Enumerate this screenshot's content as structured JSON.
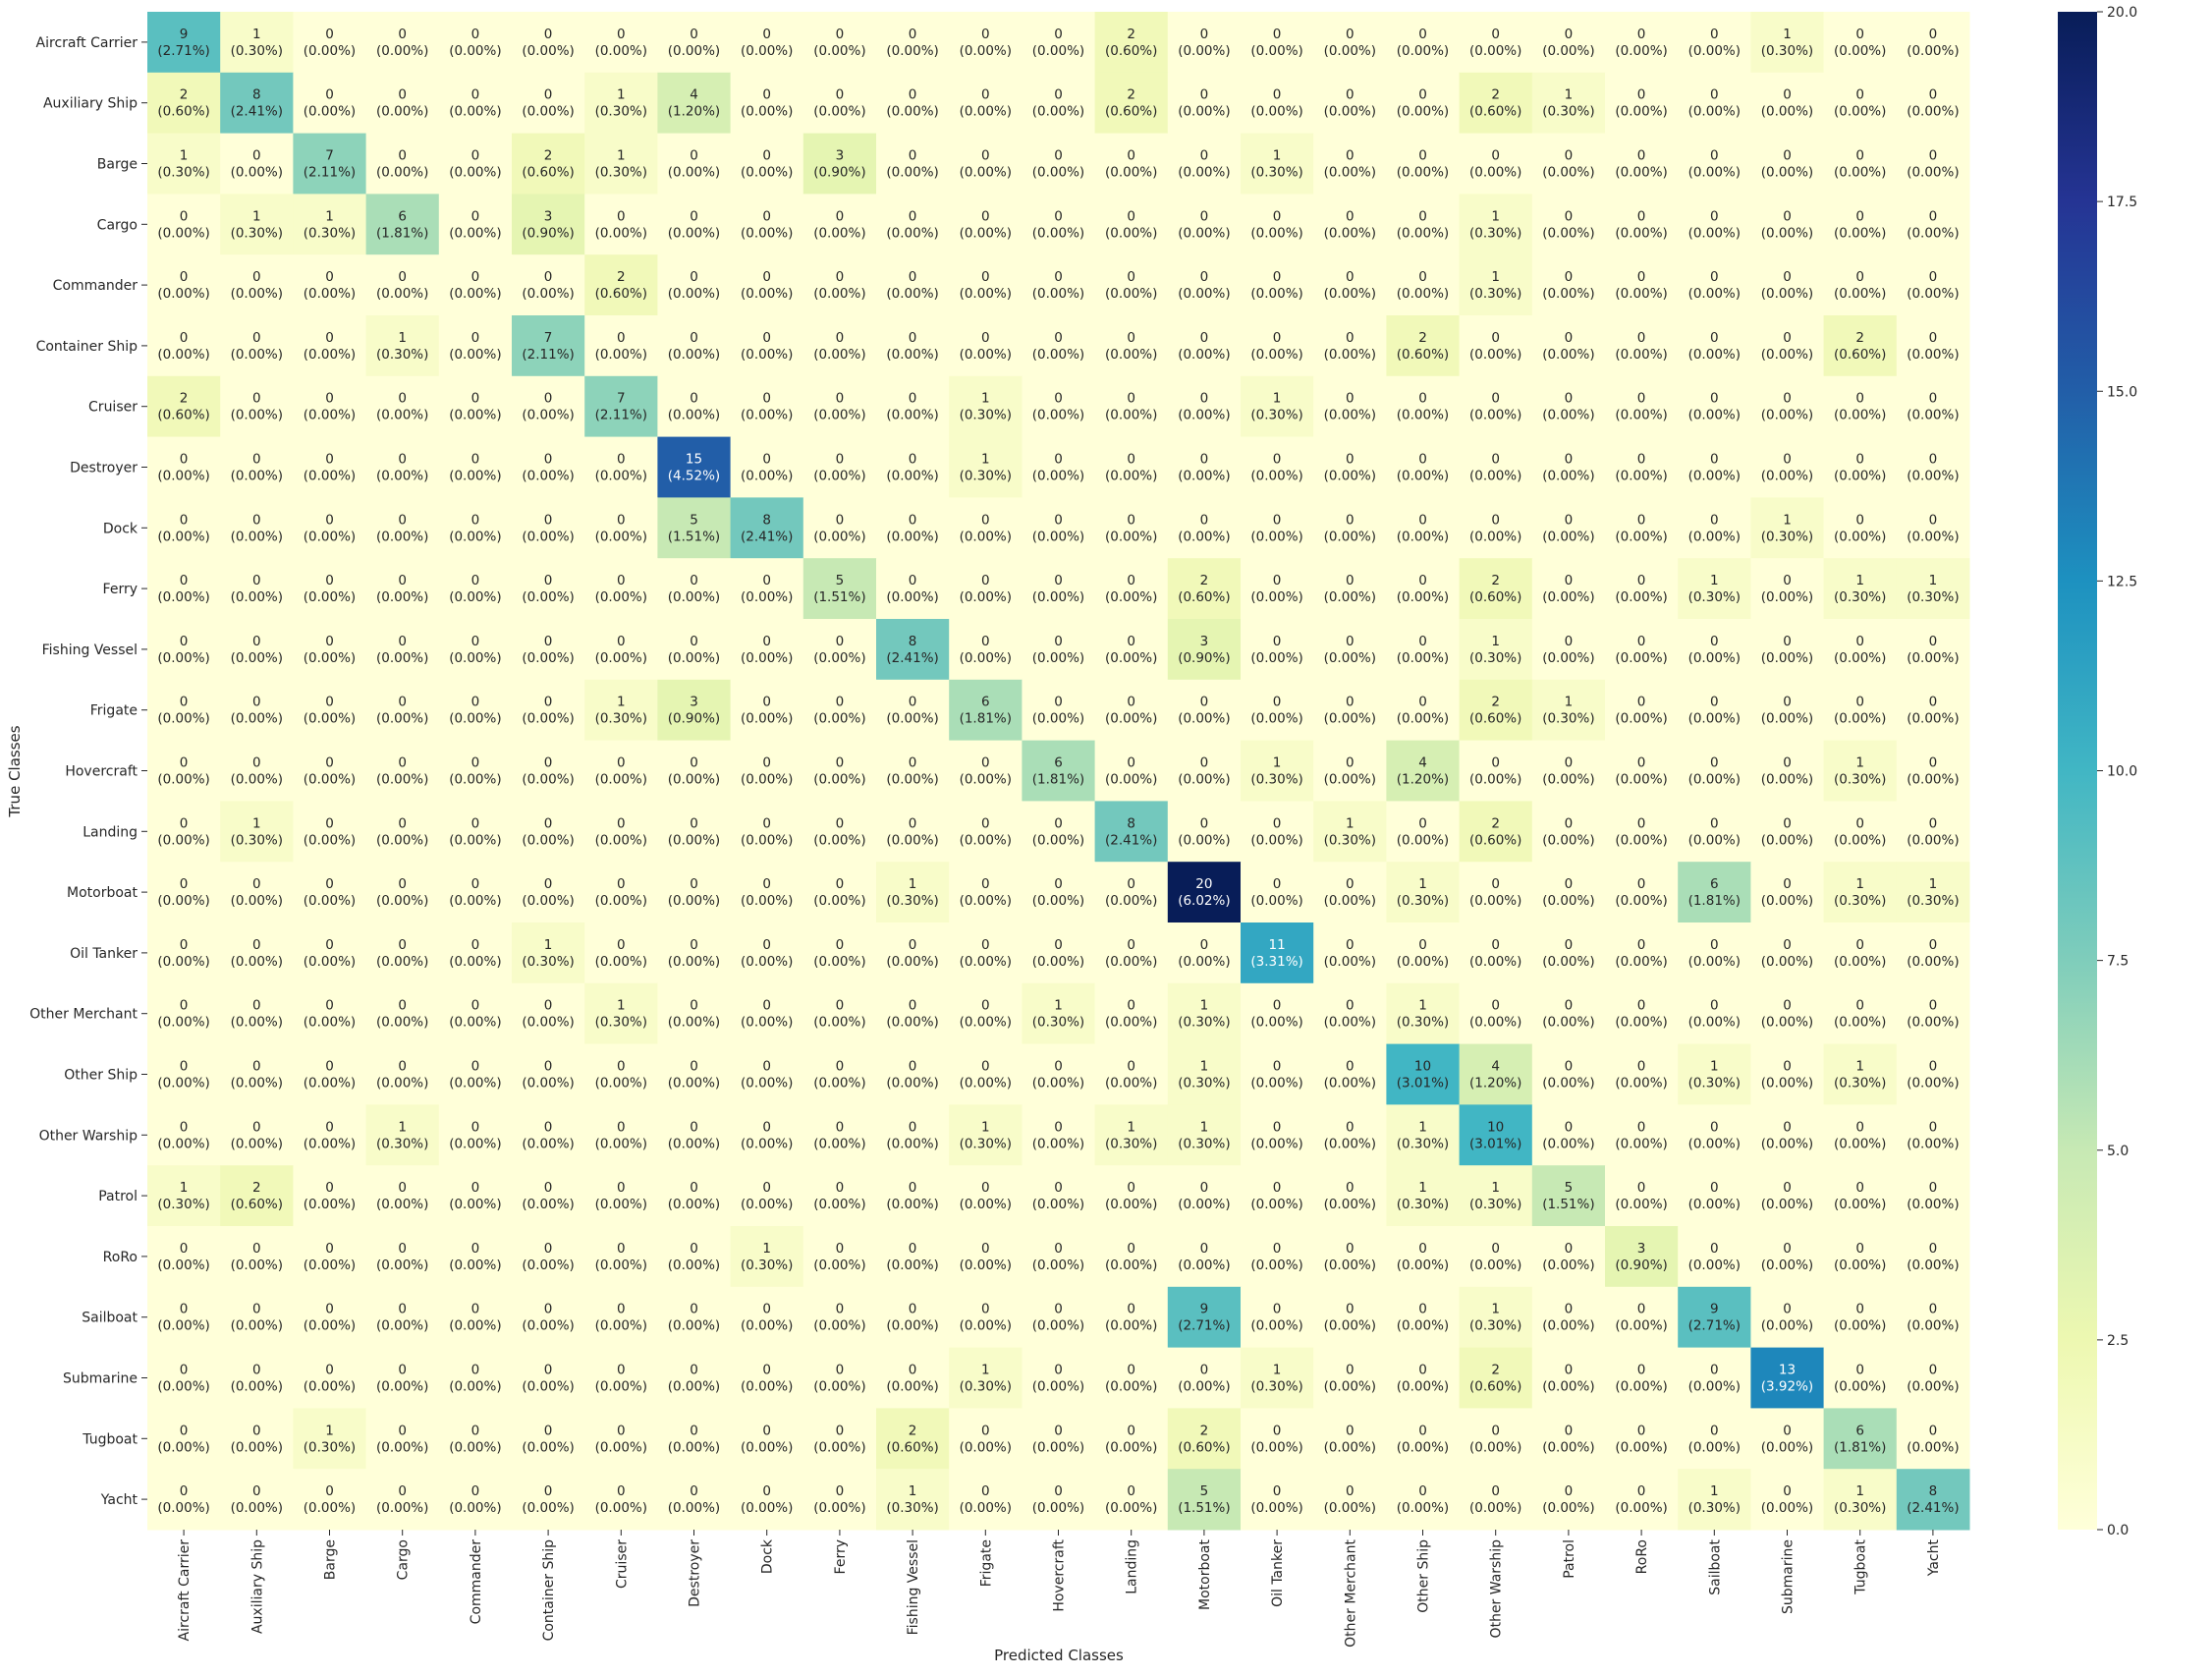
{
  "chart_data": {
    "type": "heatmap",
    "title": "",
    "xlabel": "Predicted Classes",
    "ylabel": "True Classes",
    "labels": [
      "Aircraft Carrier",
      "Auxiliary Ship",
      "Barge",
      "Cargo",
      "Commander",
      "Container Ship",
      "Cruiser",
      "Destroyer",
      "Dock",
      "Ferry",
      "Fishing Vessel",
      "Frigate",
      "Hovercraft",
      "Landing",
      "Motorboat",
      "Oil Tanker",
      "Other Merchant",
      "Other Ship",
      "Other Warship",
      "Patrol",
      "RoRo",
      "Sailboat",
      "Submarine",
      "Tugboat",
      "Yacht"
    ],
    "matrix": [
      [
        9,
        1,
        0,
        0,
        0,
        0,
        0,
        0,
        0,
        0,
        0,
        0,
        0,
        2,
        0,
        0,
        0,
        0,
        0,
        0,
        0,
        0,
        1,
        0,
        0
      ],
      [
        2,
        8,
        0,
        0,
        0,
        0,
        1,
        4,
        0,
        0,
        0,
        0,
        0,
        2,
        0,
        0,
        0,
        0,
        2,
        1,
        0,
        0,
        0,
        0,
        0
      ],
      [
        1,
        0,
        7,
        0,
        0,
        2,
        1,
        0,
        0,
        3,
        0,
        0,
        0,
        0,
        0,
        1,
        0,
        0,
        0,
        0,
        0,
        0,
        0,
        0,
        0
      ],
      [
        0,
        1,
        1,
        6,
        0,
        3,
        0,
        0,
        0,
        0,
        0,
        0,
        0,
        0,
        0,
        0,
        0,
        0,
        1,
        0,
        0,
        0,
        0,
        0,
        0
      ],
      [
        0,
        0,
        0,
        0,
        0,
        0,
        2,
        0,
        0,
        0,
        0,
        0,
        0,
        0,
        0,
        0,
        0,
        0,
        1,
        0,
        0,
        0,
        0,
        0,
        0
      ],
      [
        0,
        0,
        0,
        1,
        0,
        7,
        0,
        0,
        0,
        0,
        0,
        0,
        0,
        0,
        0,
        0,
        0,
        2,
        0,
        0,
        0,
        0,
        0,
        2,
        0
      ],
      [
        2,
        0,
        0,
        0,
        0,
        0,
        7,
        0,
        0,
        0,
        0,
        1,
        0,
        0,
        0,
        1,
        0,
        0,
        0,
        0,
        0,
        0,
        0,
        0,
        0
      ],
      [
        0,
        0,
        0,
        0,
        0,
        0,
        0,
        15,
        0,
        0,
        0,
        1,
        0,
        0,
        0,
        0,
        0,
        0,
        0,
        0,
        0,
        0,
        0,
        0,
        0
      ],
      [
        0,
        0,
        0,
        0,
        0,
        0,
        0,
        5,
        8,
        0,
        0,
        0,
        0,
        0,
        0,
        0,
        0,
        0,
        0,
        0,
        0,
        0,
        1,
        0,
        0
      ],
      [
        0,
        0,
        0,
        0,
        0,
        0,
        0,
        0,
        0,
        5,
        0,
        0,
        0,
        0,
        2,
        0,
        0,
        0,
        2,
        0,
        0,
        1,
        0,
        1,
        1
      ],
      [
        0,
        0,
        0,
        0,
        0,
        0,
        0,
        0,
        0,
        0,
        8,
        0,
        0,
        0,
        3,
        0,
        0,
        0,
        1,
        0,
        0,
        0,
        0,
        0,
        0
      ],
      [
        0,
        0,
        0,
        0,
        0,
        0,
        1,
        3,
        0,
        0,
        0,
        6,
        0,
        0,
        0,
        0,
        0,
        0,
        2,
        1,
        0,
        0,
        0,
        0,
        0
      ],
      [
        0,
        0,
        0,
        0,
        0,
        0,
        0,
        0,
        0,
        0,
        0,
        0,
        6,
        0,
        0,
        1,
        0,
        4,
        0,
        0,
        0,
        0,
        0,
        1,
        0
      ],
      [
        0,
        1,
        0,
        0,
        0,
        0,
        0,
        0,
        0,
        0,
        0,
        0,
        0,
        8,
        0,
        0,
        1,
        0,
        2,
        0,
        0,
        0,
        0,
        0,
        0
      ],
      [
        0,
        0,
        0,
        0,
        0,
        0,
        0,
        0,
        0,
        0,
        1,
        0,
        0,
        0,
        20,
        0,
        0,
        1,
        0,
        0,
        0,
        6,
        0,
        1,
        1
      ],
      [
        0,
        0,
        0,
        0,
        0,
        1,
        0,
        0,
        0,
        0,
        0,
        0,
        0,
        0,
        0,
        11,
        0,
        0,
        0,
        0,
        0,
        0,
        0,
        0,
        0
      ],
      [
        0,
        0,
        0,
        0,
        0,
        0,
        1,
        0,
        0,
        0,
        0,
        0,
        1,
        0,
        1,
        0,
        0,
        1,
        0,
        0,
        0,
        0,
        0,
        0,
        0
      ],
      [
        0,
        0,
        0,
        0,
        0,
        0,
        0,
        0,
        0,
        0,
        0,
        0,
        0,
        0,
        1,
        0,
        0,
        10,
        4,
        0,
        0,
        1,
        0,
        1,
        0
      ],
      [
        0,
        0,
        0,
        1,
        0,
        0,
        0,
        0,
        0,
        0,
        0,
        1,
        0,
        1,
        1,
        0,
        0,
        1,
        10,
        0,
        0,
        0,
        0,
        0,
        0
      ],
      [
        1,
        2,
        0,
        0,
        0,
        0,
        0,
        0,
        0,
        0,
        0,
        0,
        0,
        0,
        0,
        0,
        0,
        1,
        1,
        5,
        0,
        0,
        0,
        0,
        0
      ],
      [
        0,
        0,
        0,
        0,
        0,
        0,
        0,
        0,
        1,
        0,
        0,
        0,
        0,
        0,
        0,
        0,
        0,
        0,
        0,
        0,
        3,
        0,
        0,
        0,
        0
      ],
      [
        0,
        0,
        0,
        0,
        0,
        0,
        0,
        0,
        0,
        0,
        0,
        0,
        0,
        0,
        9,
        0,
        0,
        0,
        1,
        0,
        0,
        9,
        0,
        0,
        0
      ],
      [
        0,
        0,
        0,
        0,
        0,
        0,
        0,
        0,
        0,
        0,
        0,
        1,
        0,
        0,
        0,
        1,
        0,
        0,
        2,
        0,
        0,
        0,
        13,
        0,
        0
      ],
      [
        0,
        0,
        1,
        0,
        0,
        0,
        0,
        0,
        0,
        0,
        2,
        0,
        0,
        0,
        2,
        0,
        0,
        0,
        0,
        0,
        0,
        0,
        0,
        6,
        0
      ],
      [
        0,
        0,
        0,
        0,
        0,
        0,
        0,
        0,
        0,
        0,
        1,
        0,
        0,
        0,
        5,
        0,
        0,
        0,
        0,
        0,
        0,
        1,
        0,
        1,
        8
      ]
    ],
    "total": 332,
    "vmin": 0,
    "vmax": 20,
    "colorbar_ticks": [
      "0.0",
      "2.5",
      "5.0",
      "7.5",
      "10.0",
      "12.5",
      "15.0",
      "17.5",
      "20.0"
    ],
    "colormap": "YlGnBu",
    "grid": false
  }
}
